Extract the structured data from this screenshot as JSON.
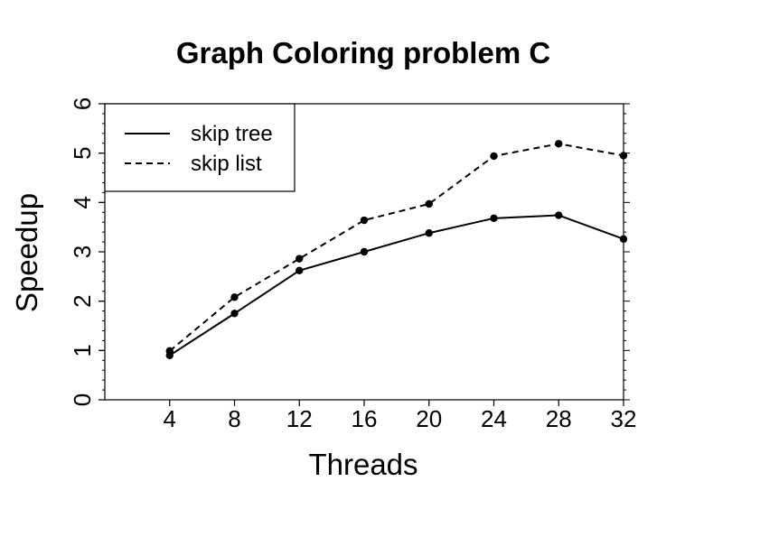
{
  "chart_data": {
    "type": "line",
    "title": "Graph Coloring problem C",
    "xlabel": "Threads",
    "ylabel": "Speedup",
    "x": [
      4,
      8,
      12,
      16,
      20,
      24,
      28,
      32
    ],
    "xticks": [
      4,
      8,
      12,
      16,
      20,
      24,
      28,
      32
    ],
    "yticks": [
      0,
      1,
      2,
      3,
      4,
      5,
      6
    ],
    "xlim": [
      0,
      32
    ],
    "ylim": [
      0,
      6
    ],
    "grid": false,
    "legend_position": "top-left",
    "series": [
      {
        "name": "skip tree",
        "style": "solid",
        "values": [
          0.9,
          1.75,
          2.62,
          3.0,
          3.38,
          3.68,
          3.74,
          3.26
        ]
      },
      {
        "name": "skip list",
        "style": "dashed",
        "values": [
          0.99,
          2.08,
          2.86,
          3.64,
          3.97,
          4.94,
          5.19,
          4.95
        ]
      }
    ],
    "colors": {
      "line": "#000000",
      "background": "#ffffff"
    }
  }
}
